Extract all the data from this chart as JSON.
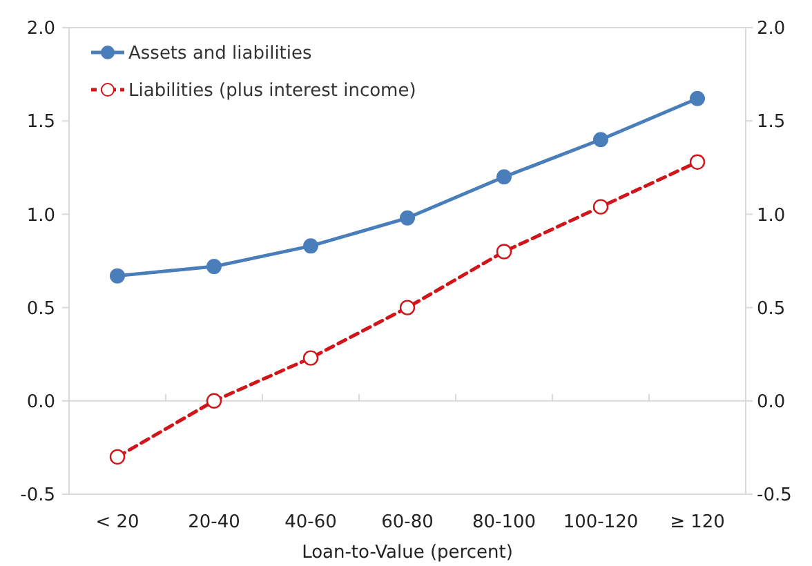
{
  "chart_data": {
    "type": "line",
    "xlabel": "Loan-to-Value (percent)",
    "categories": [
      "< 20",
      "20-40",
      "40-60",
      "60-80",
      "80-100",
      "100-120",
      "≥ 120"
    ],
    "series": [
      {
        "name": "Assets and liabilities",
        "color": "#4a7ebb",
        "line_style": "solid",
        "values": [
          0.67,
          0.72,
          0.83,
          0.98,
          1.2,
          1.4,
          1.62
        ]
      },
      {
        "name": "Liabilities (plus interest income)",
        "color": "#d0161b",
        "line_style": "dashed",
        "values": [
          -0.3,
          0.0,
          0.23,
          0.5,
          0.8,
          1.04,
          1.28
        ]
      }
    ],
    "ylim": [
      -0.5,
      2.0
    ],
    "yticks": [
      {
        "value": -0.5,
        "label": "-0.5"
      },
      {
        "value": 0,
        "label": "0.0"
      },
      {
        "value": 0.5,
        "label": "0.5"
      },
      {
        "value": 1,
        "label": "1.0"
      },
      {
        "value": 1.5,
        "label": "1.5"
      },
      {
        "value": 2,
        "label": "2.0"
      }
    ],
    "y2lim": [
      -0.5,
      2.0
    ],
    "y2ticks": [
      {
        "value": -0.5,
        "label": "-0.5"
      },
      {
        "value": 0,
        "label": "0.0"
      },
      {
        "value": 0.5,
        "label": "0.5"
      },
      {
        "value": 1,
        "label": "1.0"
      },
      {
        "value": 1.5,
        "label": "1.5"
      },
      {
        "value": 2,
        "label": "2.0"
      }
    ],
    "marker": "circle",
    "legend": "top left"
  }
}
